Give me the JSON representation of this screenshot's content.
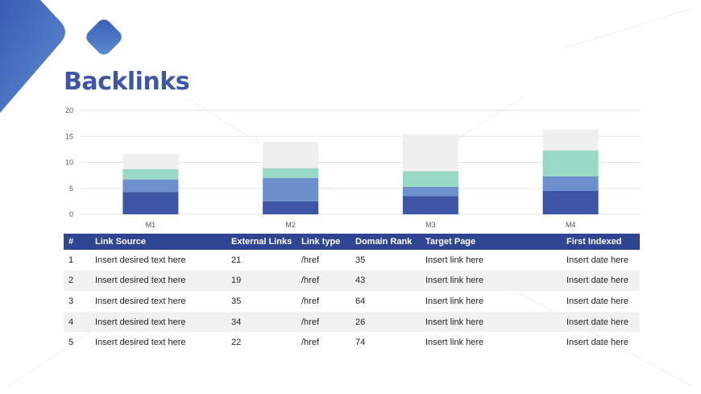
{
  "title": "Backlinks",
  "colors": {
    "accent": "#3f56a6",
    "header_bg": "#2f4590",
    "seg1": "#3e55a6",
    "seg2": "#6b90cc",
    "seg3": "#98d8c4",
    "seg4": "#eef0f0",
    "grid": "#e3e3e3",
    "alt_row": "#f0f2f2"
  },
  "chart_data": {
    "type": "bar",
    "stacked": true,
    "categories": [
      "M1",
      "M2",
      "M3",
      "M4"
    ],
    "series": [
      {
        "values": [
          4.3,
          2.5,
          3.5,
          4.5
        ]
      },
      {
        "values": [
          2.4,
          4.5,
          1.8,
          2.8
        ]
      },
      {
        "values": [
          2.0,
          1.9,
          3.0,
          5.0
        ]
      },
      {
        "values": [
          2.9,
          5.0,
          7.1,
          4.0
        ]
      }
    ],
    "ylim": [
      0,
      20
    ],
    "yticks": [
      "0",
      "5",
      "10",
      "15",
      "20"
    ],
    "grid": true,
    "legend": "none"
  },
  "table": {
    "headers": [
      "#",
      "Link Source",
      "External Links",
      "Link type",
      "Domain Rank",
      "Target Page",
      "First Indexed"
    ],
    "rows": [
      [
        "1",
        "Insert desired text here",
        "21",
        "/href",
        "35",
        "Insert link here",
        "Insert date  here"
      ],
      [
        "2",
        "Insert desired text here",
        "19",
        "/href",
        "43",
        "Insert link here",
        "Insert date  here"
      ],
      [
        "3",
        "Insert desired text here",
        "35",
        "/href",
        "64",
        "Insert link here",
        "Insert date  here"
      ],
      [
        "4",
        "Insert desired text here",
        "34",
        "/href",
        "26",
        "Insert link here",
        "Insert date  here"
      ],
      [
        "5",
        "Insert desired text here",
        "22",
        "/href",
        "74",
        "Insert link here",
        "Insert date  here"
      ]
    ]
  }
}
